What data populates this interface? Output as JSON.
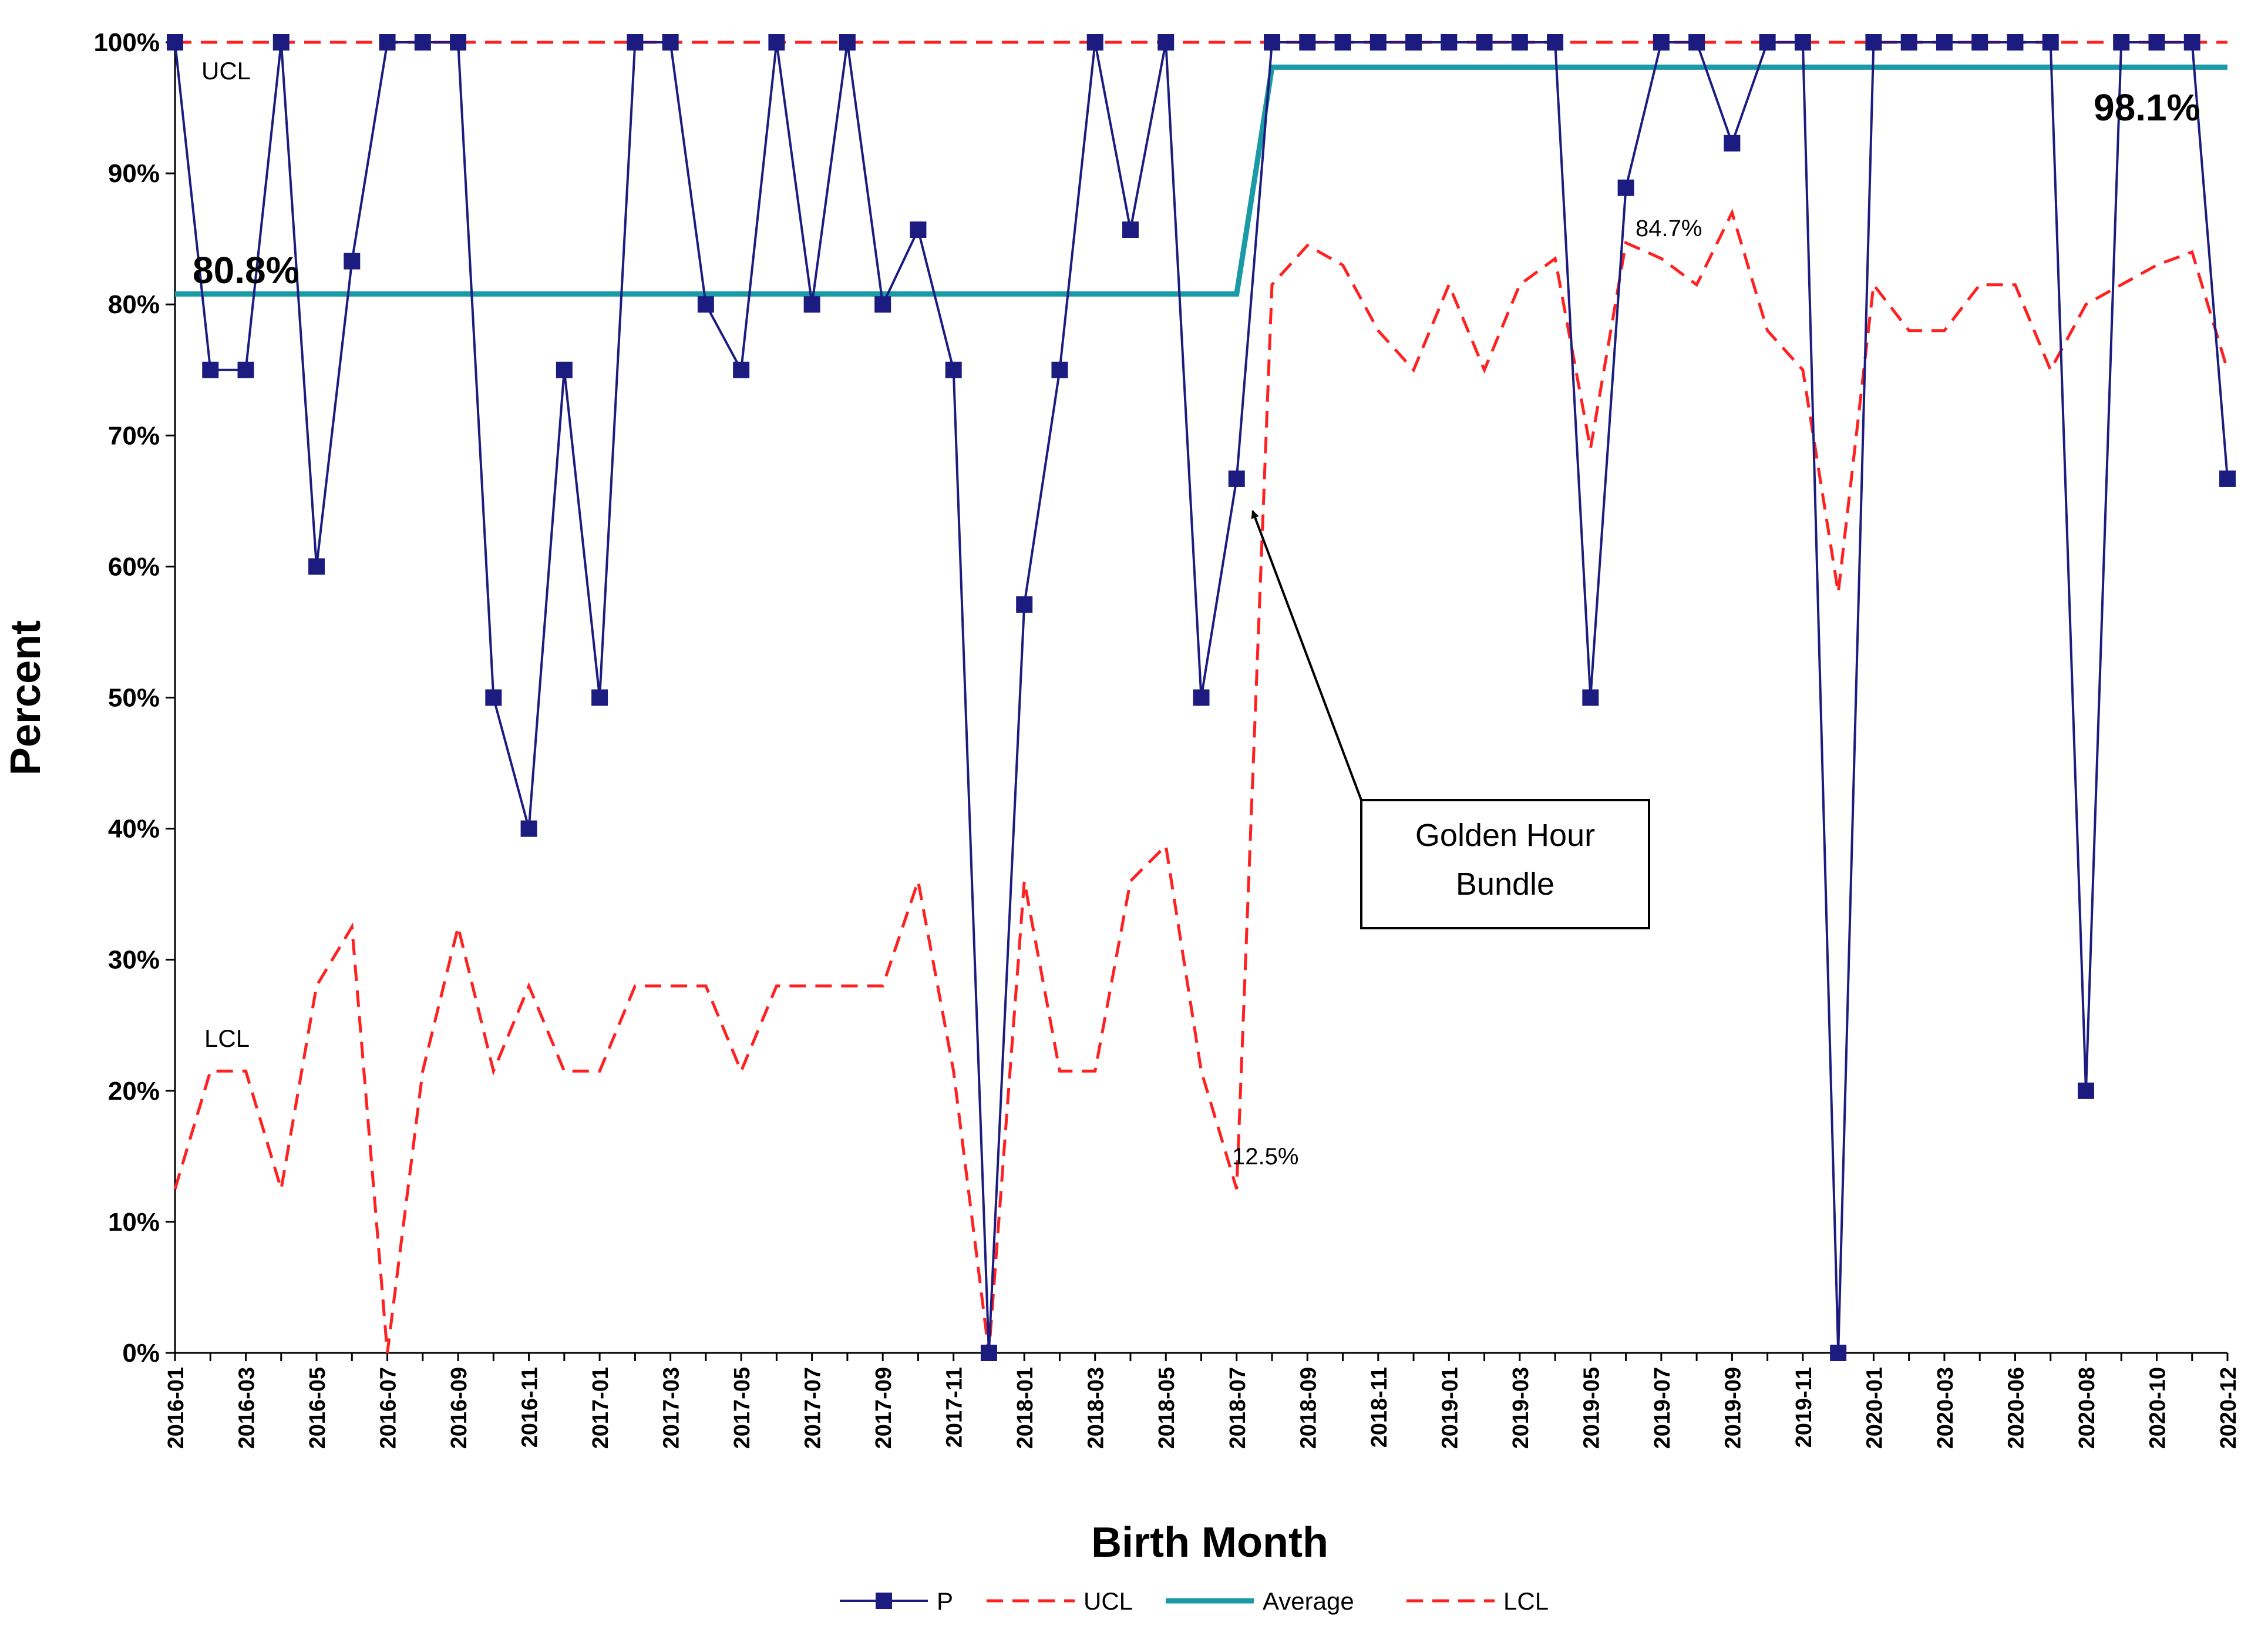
{
  "chart_data": {
    "type": "line",
    "xlabel": "Birth Month",
    "ylabel": "Percent",
    "ylim": [
      0,
      100
    ],
    "y_ticks": [
      "0%",
      "10%",
      "20%",
      "30%",
      "40%",
      "50%",
      "60%",
      "70%",
      "80%",
      "90%",
      "100%"
    ],
    "categories": [
      "2016-01",
      "2016-02",
      "2016-03",
      "2016-04",
      "2016-05",
      "2016-06",
      "2016-07",
      "2016-08",
      "2016-09",
      "2016-10",
      "2016-11",
      "2016-12",
      "2017-01",
      "2017-02",
      "2017-03",
      "2017-04",
      "2017-05",
      "2017-06",
      "2017-07",
      "2017-08",
      "2017-09",
      "2017-10",
      "2017-11",
      "2017-12",
      "2018-01",
      "2018-02",
      "2018-03",
      "2018-04",
      "2018-05",
      "2018-06",
      "2018-07",
      "2018-08",
      "2018-09",
      "2018-10",
      "2018-11",
      "2018-12",
      "2019-01",
      "2019-02",
      "2019-03",
      "2019-04",
      "2019-05",
      "2019-06",
      "2019-07",
      "2019-08",
      "2019-09",
      "2019-10",
      "2019-11",
      "2019-12",
      "2020-01",
      "2020-02",
      "2020-03",
      "2020-05",
      "2020-06",
      "2020-07",
      "2020-08",
      "2020-09",
      "2020-10",
      "2020-11",
      "2020-12"
    ],
    "x_tick_labels": [
      "2016-01",
      "2016-03",
      "2016-05",
      "2016-07",
      "2016-09",
      "2016-11",
      "2017-01",
      "2017-03",
      "2017-05",
      "2017-07",
      "2017-09",
      "2017-11",
      "2018-01",
      "2018-03",
      "2018-05",
      "2018-07",
      "2018-09",
      "2018-11",
      "2019-01",
      "2019-03",
      "2019-05",
      "2019-07",
      "2019-09",
      "2019-11",
      "2020-01",
      "2020-03",
      "2020-06",
      "2020-08",
      "2020-10",
      "2020-12"
    ],
    "series": [
      {
        "name": "P",
        "color": "#1c1c80",
        "style": "solid-square-markers",
        "values": [
          100,
          75,
          75,
          100,
          60,
          83.3,
          100,
          100,
          100,
          50,
          40,
          75,
          50,
          100,
          100,
          80,
          75,
          100,
          80,
          100,
          80,
          85.7,
          75,
          0,
          57.1,
          75,
          100,
          85.7,
          100,
          50,
          66.7,
          100,
          100,
          100,
          100,
          100,
          100,
          100,
          100,
          100,
          50,
          88.9,
          100,
          100,
          92.3,
          100,
          100,
          0,
          100,
          100,
          100,
          100,
          100,
          100,
          20,
          100,
          100,
          100,
          66.7
        ]
      },
      {
        "name": "UCL",
        "color": "#ff2020",
        "style": "dashed",
        "values": [
          100,
          100,
          100,
          100,
          100,
          100,
          100,
          100,
          100,
          100,
          100,
          100,
          100,
          100,
          100,
          100,
          100,
          100,
          100,
          100,
          100,
          100,
          100,
          100,
          100,
          100,
          100,
          100,
          100,
          100,
          100,
          100,
          100,
          100,
          100,
          100,
          100,
          100,
          100,
          100,
          100,
          100,
          100,
          100,
          100,
          100,
          100,
          100,
          100,
          100,
          100,
          100,
          100,
          100,
          100,
          100,
          100,
          100,
          100
        ]
      },
      {
        "name": "Average",
        "color": "#1a9aa6",
        "style": "solid-thick",
        "values": [
          80.8,
          80.8,
          80.8,
          80.8,
          80.8,
          80.8,
          80.8,
          80.8,
          80.8,
          80.8,
          80.8,
          80.8,
          80.8,
          80.8,
          80.8,
          80.8,
          80.8,
          80.8,
          80.8,
          80.8,
          80.8,
          80.8,
          80.8,
          80.8,
          80.8,
          80.8,
          80.8,
          80.8,
          80.8,
          80.8,
          80.8,
          98.1,
          98.1,
          98.1,
          98.1,
          98.1,
          98.1,
          98.1,
          98.1,
          98.1,
          98.1,
          98.1,
          98.1,
          98.1,
          98.1,
          98.1,
          98.1,
          98.1,
          98.1,
          98.1,
          98.1,
          98.1,
          98.1,
          98.1,
          98.1,
          98.1,
          98.1,
          98.1,
          98.1
        ]
      },
      {
        "name": "LCL",
        "color": "#ff2020",
        "style": "dashed",
        "values": [
          12.5,
          21.5,
          21.5,
          12.5,
          28,
          32.5,
          0,
          21.5,
          32.5,
          21.5,
          28,
          21.5,
          21.5,
          28,
          28,
          28,
          21.5,
          28,
          28,
          28,
          28,
          36,
          21.5,
          0,
          36,
          21.5,
          21.5,
          36,
          38.7,
          21.5,
          12.5,
          81.5,
          84.5,
          83,
          78,
          75,
          81.5,
          75,
          81.5,
          83.5,
          69,
          84.7,
          83.5,
          81.5,
          87,
          78,
          75,
          58,
          81.5,
          78,
          78,
          81.5,
          81.5,
          75,
          80,
          81.5,
          83,
          84,
          75
        ]
      }
    ],
    "annotations": {
      "avg_before": "80.8%",
      "avg_after": "98.1%",
      "ucl_label": "UCL",
      "lcl_label": "LCL",
      "lcl_point_label": "12.5%",
      "lcl_peak_label": "84.7%",
      "callout": [
        "Golden Hour",
        "Bundle"
      ]
    },
    "legend": {
      "position": "bottom",
      "items": [
        "P",
        "UCL",
        "Average",
        "LCL"
      ]
    },
    "grid": false
  }
}
